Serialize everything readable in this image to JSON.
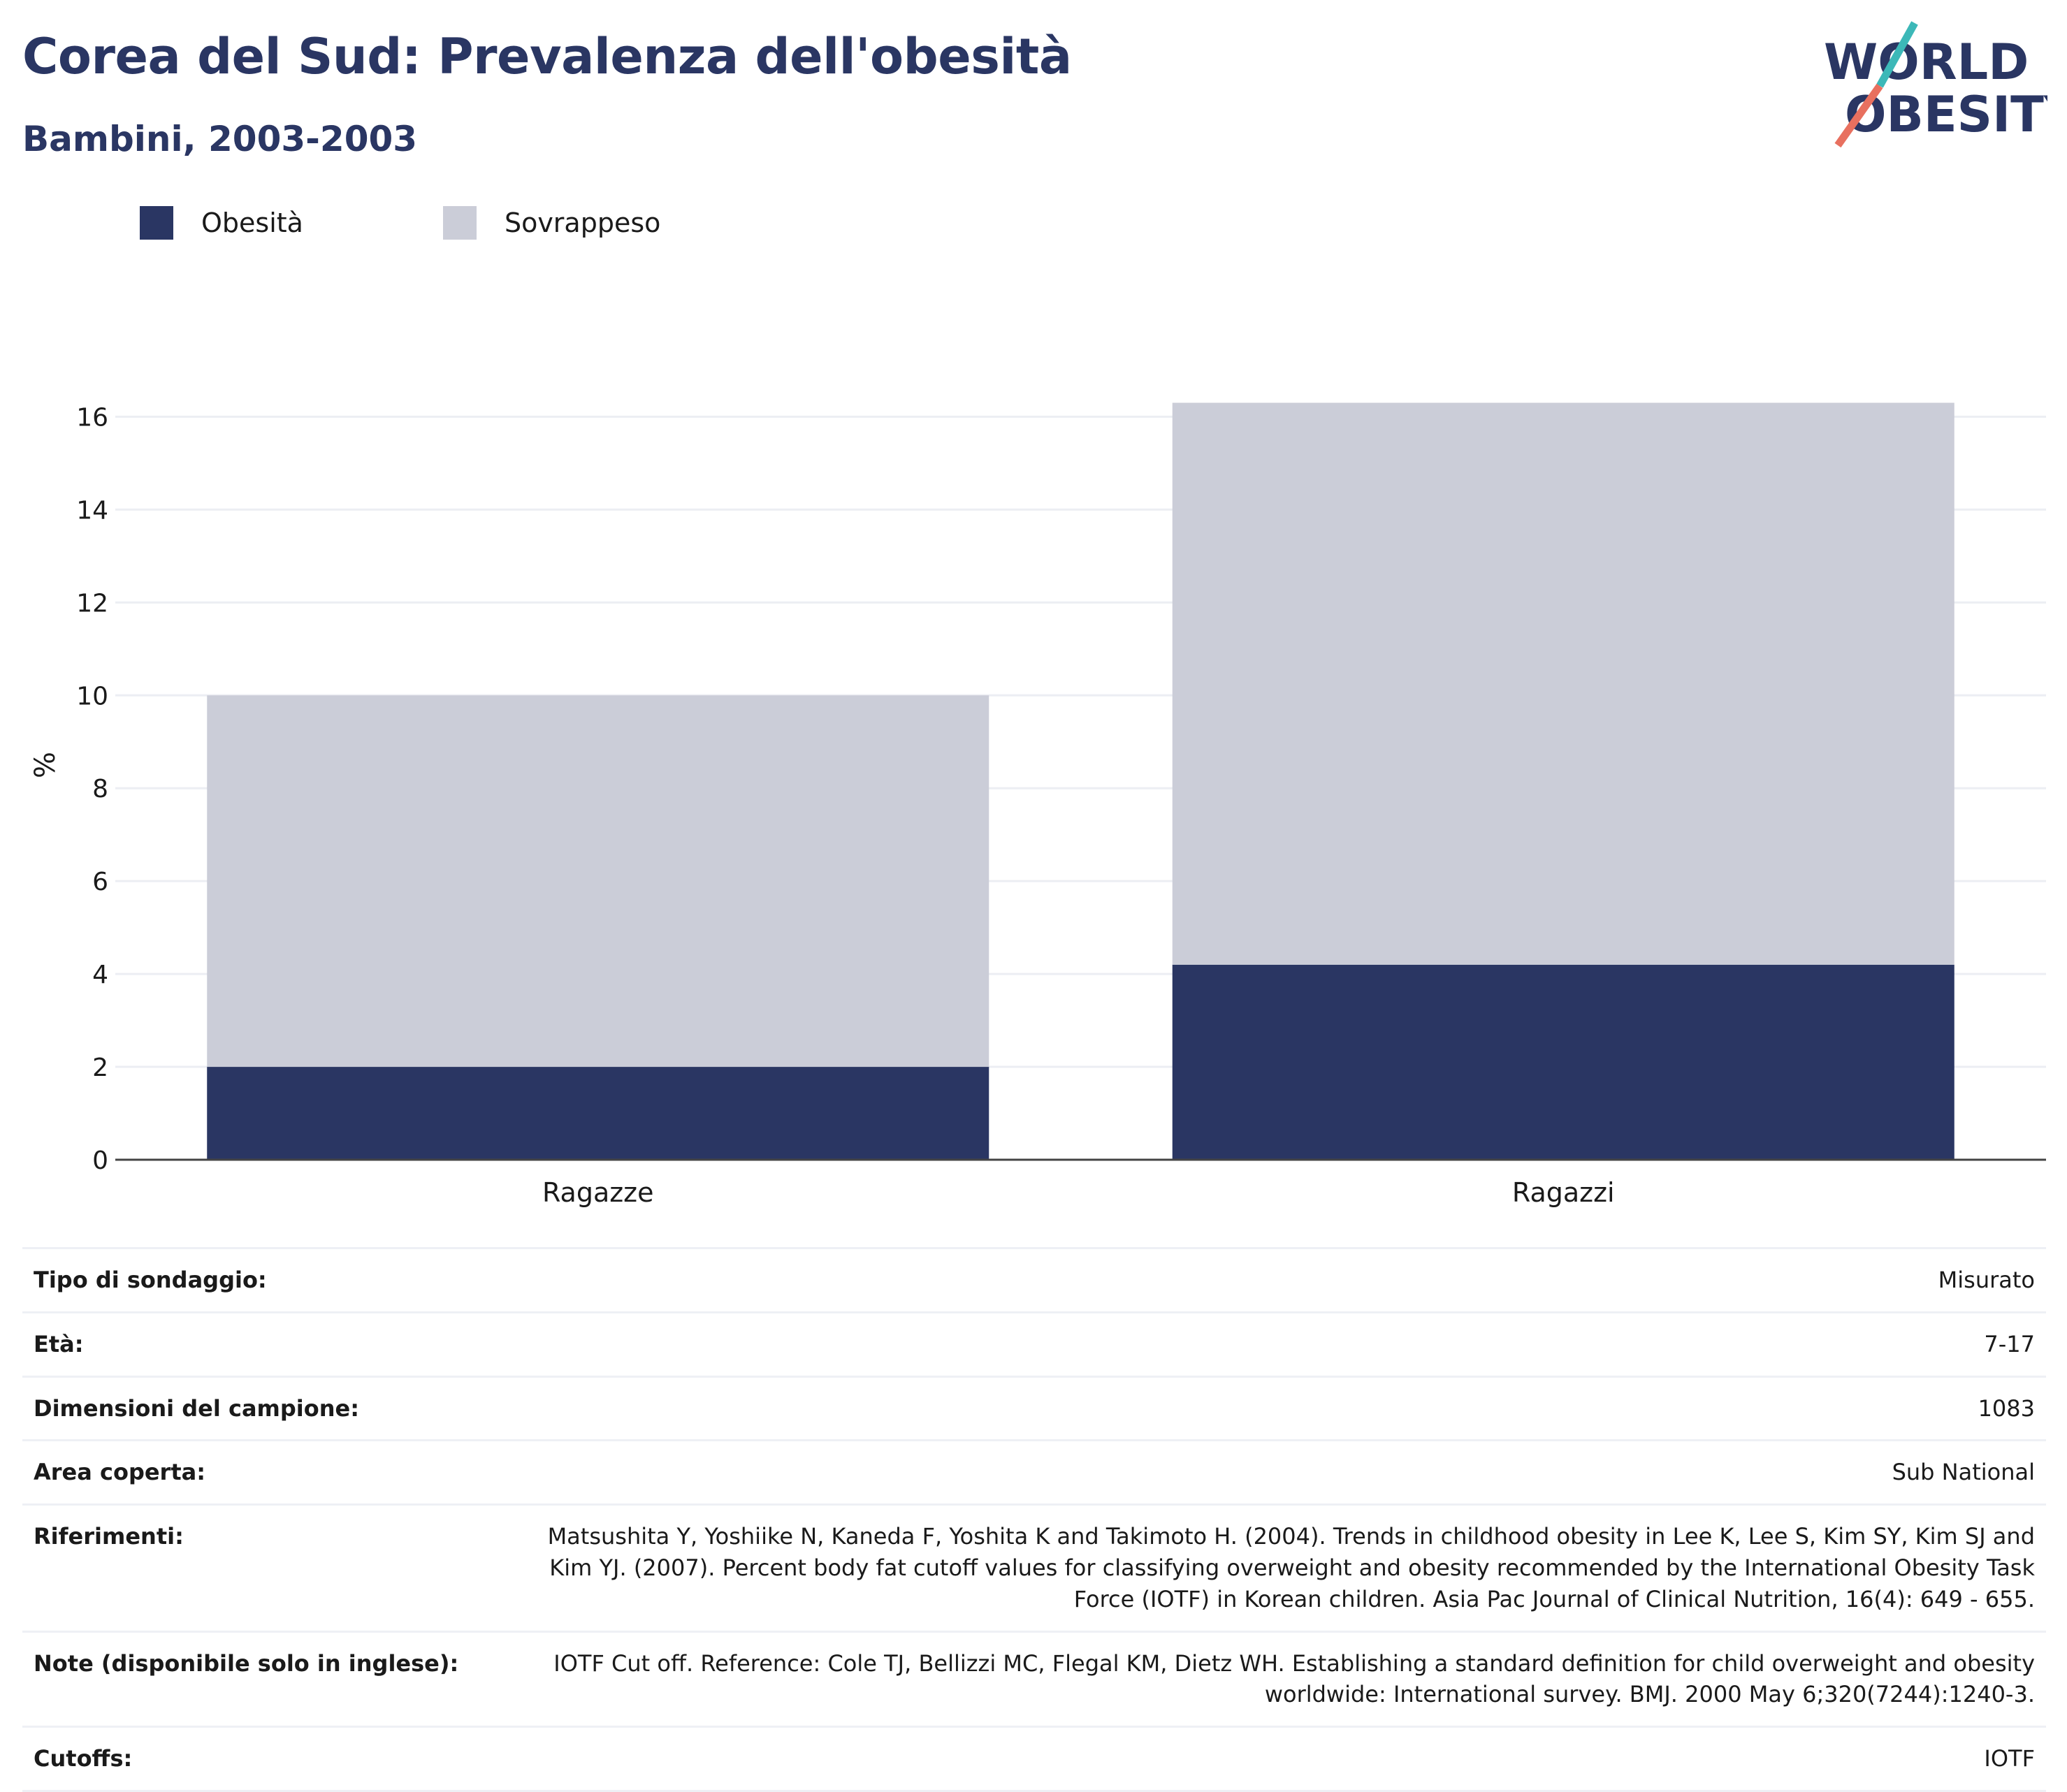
{
  "header": {
    "title": "Corea del Sud: Prevalenza dell'obesità",
    "subtitle": "Bambini, 2003-2003"
  },
  "logo": {
    "line1": "WORLD",
    "line2": "OBESITY"
  },
  "colors": {
    "title": "#2a3663",
    "obesity": "#2a3663",
    "overweight": "#cbcdd8",
    "grid": "#eceef3",
    "logo_teal": "#3cb8b8",
    "logo_coral": "#e8705f"
  },
  "chart_data": {
    "type": "bar",
    "stacked": true,
    "categories": [
      "Ragazze",
      "Ragazzi"
    ],
    "series": [
      {
        "name": "Obesità",
        "values": [
          2.0,
          4.2
        ]
      },
      {
        "name": "Sovrappeso",
        "values": [
          8.0,
          12.1
        ]
      }
    ],
    "ylabel": "%",
    "ylim": [
      0,
      17
    ],
    "yticks": [
      0,
      2,
      4,
      6,
      8,
      10,
      12,
      14,
      16
    ],
    "legend_position": "top-left",
    "grid": true
  },
  "info": [
    {
      "label": "Tipo di sondaggio:",
      "value": "Misurato"
    },
    {
      "label": "Età:",
      "value": "7-17"
    },
    {
      "label": "Dimensioni del campione:",
      "value": "1083"
    },
    {
      "label": "Area coperta:",
      "value": "Sub National"
    },
    {
      "label": "Riferimenti:",
      "value": "Matsushita Y, Yoshiike N, Kaneda F, Yoshita K and Takimoto H. (2004). Trends in childhood obesity in Lee K, Lee S, Kim SY, Kim SJ and Kim YJ. (2007). Percent body fat cutoff values for classifying overweight and obesity recommended by the International Obesity Task Force (IOTF) in Korean children. Asia Pac Journal of Clinical Nutrition, 16(4): 649 - 655."
    },
    {
      "label": "Note (disponibile solo in inglese):",
      "value": "IOTF Cut off. Reference: Cole TJ, Bellizzi MC, Flegal KM, Dietz WH. Establishing a standard definition for child overweight and obesity worldwide: International survey. BMJ. 2000 May 6;320(7244):1240-3."
    },
    {
      "label": "Cutoffs:",
      "value": "IOTF"
    }
  ]
}
